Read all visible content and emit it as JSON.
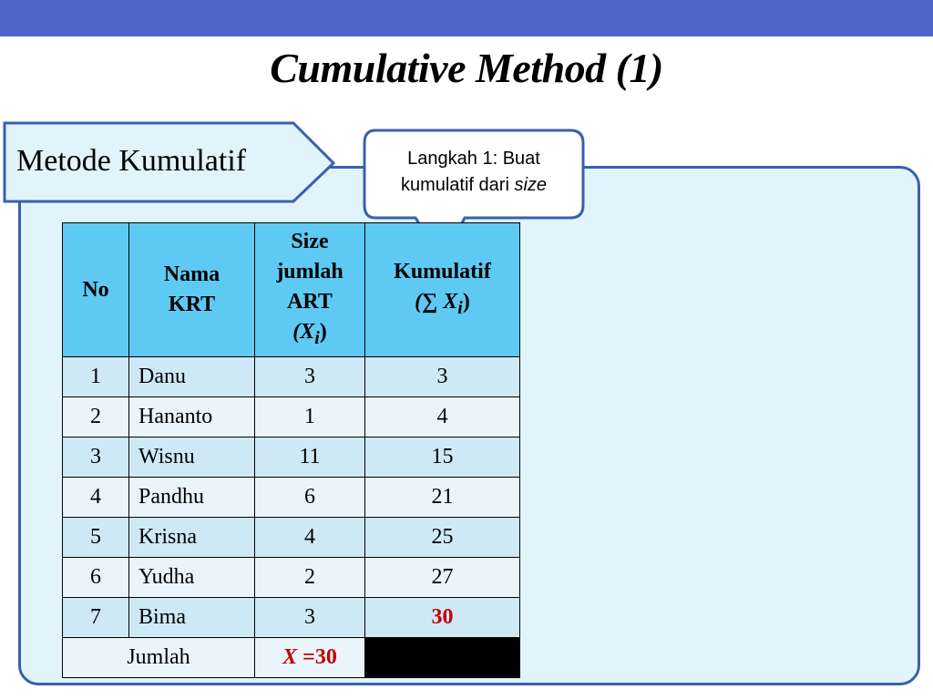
{
  "title": "Cumulative Method (1)",
  "label": "Metode Kumulatif",
  "callout": {
    "line1": "Langkah 1: Buat",
    "line2_prefix": "kumulatif dari ",
    "line2_italic": "size"
  },
  "table": {
    "headers": {
      "no": "No",
      "nama_1": "Nama",
      "nama_2": "KRT",
      "size_1": "Size",
      "size_2": "jumlah",
      "size_3": "ART",
      "size_4": "(X",
      "size_sub": "i",
      "size_close": ")",
      "kum_1": "Kumulatif",
      "kum_2": "(∑ X",
      "kum_sub": "i",
      "kum_close": ")"
    },
    "rows": [
      {
        "no": "1",
        "nama": "Danu",
        "size": "3",
        "kumulatif": "3"
      },
      {
        "no": "2",
        "nama": "Hananto",
        "size": "1",
        "kumulatif": "4"
      },
      {
        "no": "3",
        "nama": "Wisnu",
        "size": "11",
        "kumulatif": "15"
      },
      {
        "no": "4",
        "nama": "Pandhu",
        "size": "6",
        "kumulatif": "21"
      },
      {
        "no": "5",
        "nama": "Krisna",
        "size": "4",
        "kumulatif": "25"
      },
      {
        "no": "6",
        "nama": "Yudha",
        "size": "2",
        "kumulatif": "27"
      },
      {
        "no": "7",
        "nama": "Bima",
        "size": "3",
        "kumulatif": "30"
      }
    ],
    "total": {
      "label": "Jumlah",
      "symbol": "X",
      "value": " =30"
    }
  },
  "colors": {
    "top_bar": "#4f67c8",
    "header": "#5ec9f3",
    "highlight": "#c00000"
  }
}
